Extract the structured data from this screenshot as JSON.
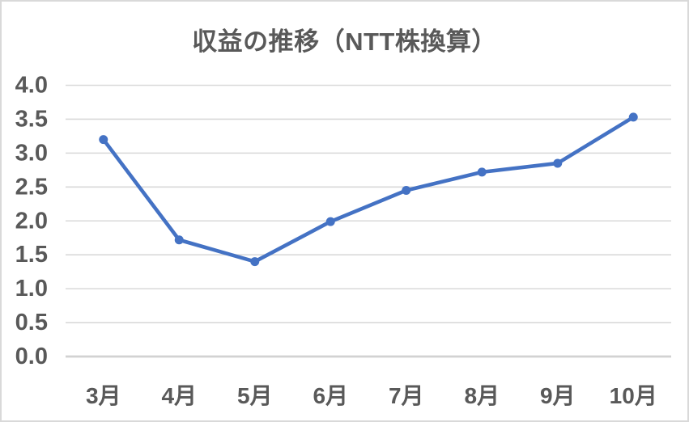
{
  "chart_data": {
    "type": "line",
    "title": "収益の推移（NTT株換算）",
    "categories": [
      "3月",
      "4月",
      "5月",
      "6月",
      "7月",
      "8月",
      "9月",
      "10月"
    ],
    "values": [
      3.2,
      1.72,
      1.4,
      1.99,
      2.45,
      2.72,
      2.85,
      3.53
    ],
    "xlabel": "",
    "ylabel": "",
    "ylim": [
      0,
      4
    ],
    "ytick_step": 0.5,
    "ytick_labels": [
      "0.0",
      "0.5",
      "1.0",
      "1.5",
      "2.0",
      "2.5",
      "3.0",
      "3.5",
      "4.0"
    ],
    "grid": true,
    "legend_position": "none",
    "colors": {
      "line": "#4472C4",
      "marker": "#4472C4",
      "grid": "#D9D9D9",
      "axis_line": "#D2D2D2",
      "text": "#595959",
      "background": "#FFFFFF",
      "frame_border": "#D9D9D9"
    }
  }
}
